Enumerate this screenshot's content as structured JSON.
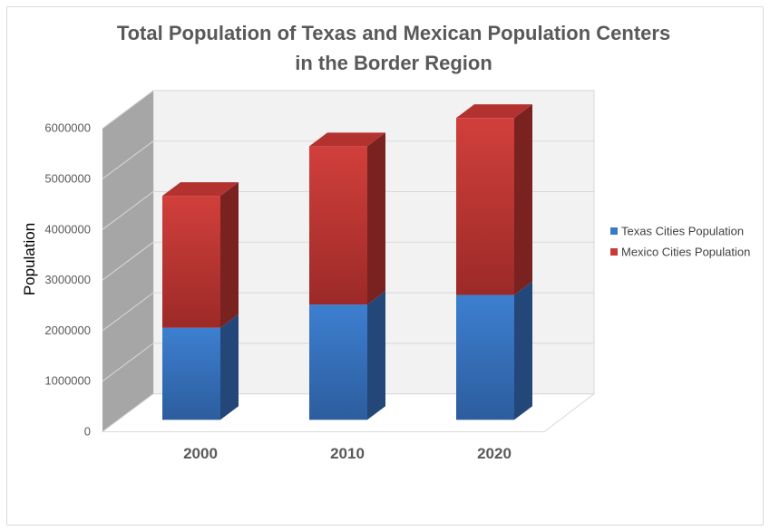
{
  "chart_data": {
    "type": "bar",
    "stacked": true,
    "three_d": true,
    "title": "Total Population of Texas and Mexican Population Centers in the Border Region",
    "title_lines": [
      "Total Population of Texas and Mexican Population Centers",
      "in the Border Region"
    ],
    "xlabel": "",
    "ylabel": "Population",
    "categories": [
      "2000",
      "2010",
      "2020"
    ],
    "ylim": [
      0,
      6000000
    ],
    "yticks": [
      "0",
      "1000000",
      "2000000",
      "3000000",
      "4000000",
      "5000000",
      "6000000"
    ],
    "grid": true,
    "legend_position": "right",
    "series": [
      {
        "name": "Texas Cities Population",
        "values": [
          1820000,
          2280000,
          2470000
        ],
        "color": "#3a78c8"
      },
      {
        "name": "Mexico Cities Population",
        "values": [
          2610000,
          3130000,
          3500000
        ],
        "color": "#c83a36"
      }
    ]
  }
}
